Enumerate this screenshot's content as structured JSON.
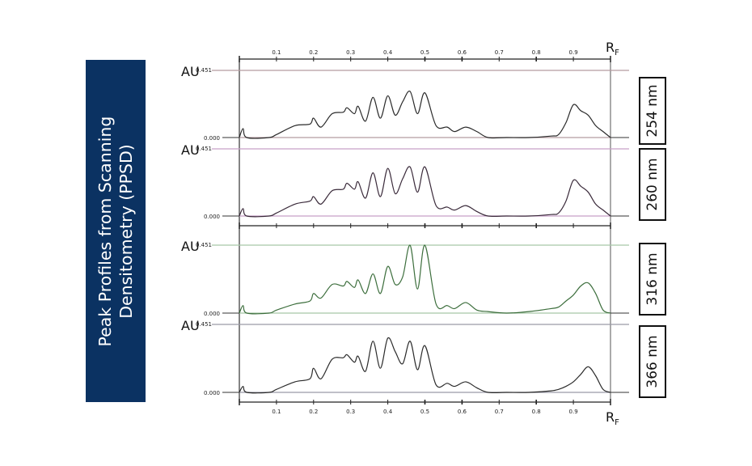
{
  "banner": {
    "title": "Peak Profiles from  Scanning\nDensitometry (PPSD)",
    "background": "#0b3262"
  },
  "axis": {
    "x_label": "R",
    "x_label_sub": "F",
    "y_label": "AU",
    "y_max_label": "0.451",
    "y_min_label": "0.000",
    "ticks": [
      "0.1",
      "0.2",
      "0.3",
      "0.4",
      "0.5",
      "0.6",
      "0.7",
      "0.8",
      "0.9"
    ]
  },
  "panels": [
    {
      "wavelength": "254 nm",
      "line_color": "#b49ca0",
      "curve_color": "#2a2a2a"
    },
    {
      "wavelength": "260 nm",
      "line_color": "#c8a0c8",
      "curve_color": "#3a2a3a"
    },
    {
      "wavelength": "316 nm",
      "line_color": "#a8c8a8",
      "curve_color": "#3c6e3c"
    },
    {
      "wavelength": "366 nm",
      "line_color": "#9a9aa8",
      "curve_color": "#2a2a2a"
    }
  ],
  "chart_data": {
    "type": "line",
    "title": "Peak Profiles from Scanning Densitometry (PPSD)",
    "xlabel": "RF",
    "ylabel": "AU",
    "xlim": [
      0,
      1.0
    ],
    "ylim": [
      0.0,
      0.451
    ],
    "grid": false,
    "x_ticks": [
      0.1,
      0.2,
      0.3,
      0.4,
      0.5,
      0.6,
      0.7,
      0.8,
      0.9
    ],
    "x": [
      0.0,
      0.01,
      0.02,
      0.08,
      0.1,
      0.15,
      0.19,
      0.2,
      0.22,
      0.25,
      0.28,
      0.29,
      0.31,
      0.32,
      0.34,
      0.36,
      0.38,
      0.4,
      0.42,
      0.44,
      0.46,
      0.48,
      0.5,
      0.53,
      0.56,
      0.58,
      0.61,
      0.64,
      0.67,
      0.72,
      0.78,
      0.84,
      0.86,
      0.88,
      0.9,
      0.92,
      0.94,
      0.96,
      0.98,
      1.0
    ],
    "series": [
      {
        "name": "254 nm",
        "values": [
          0.0,
          0.06,
          0.0,
          0.0,
          0.02,
          0.08,
          0.09,
          0.13,
          0.07,
          0.16,
          0.17,
          0.2,
          0.16,
          0.21,
          0.11,
          0.27,
          0.13,
          0.28,
          0.15,
          0.24,
          0.31,
          0.16,
          0.3,
          0.08,
          0.07,
          0.04,
          0.07,
          0.04,
          0.0,
          0.0,
          0.0,
          0.01,
          0.02,
          0.1,
          0.22,
          0.18,
          0.15,
          0.08,
          0.04,
          0.0
        ]
      },
      {
        "name": "260 nm",
        "values": [
          0.0,
          0.05,
          0.0,
          0.0,
          0.02,
          0.08,
          0.1,
          0.13,
          0.08,
          0.17,
          0.18,
          0.22,
          0.18,
          0.23,
          0.12,
          0.29,
          0.13,
          0.32,
          0.15,
          0.25,
          0.33,
          0.16,
          0.33,
          0.07,
          0.06,
          0.04,
          0.07,
          0.03,
          0.0,
          0.0,
          0.0,
          0.01,
          0.02,
          0.1,
          0.24,
          0.2,
          0.16,
          0.08,
          0.04,
          0.0
        ]
      },
      {
        "name": "316 nm",
        "values": [
          0.0,
          0.05,
          0.0,
          0.0,
          0.02,
          0.06,
          0.08,
          0.13,
          0.1,
          0.19,
          0.18,
          0.21,
          0.17,
          0.22,
          0.13,
          0.26,
          0.13,
          0.31,
          0.19,
          0.24,
          0.45,
          0.16,
          0.45,
          0.06,
          0.05,
          0.03,
          0.07,
          0.02,
          0.01,
          0.0,
          0.01,
          0.03,
          0.04,
          0.08,
          0.12,
          0.18,
          0.2,
          0.13,
          0.02,
          0.0
        ]
      },
      {
        "name": "366 nm",
        "values": [
          0.0,
          0.04,
          0.0,
          0.0,
          0.02,
          0.07,
          0.09,
          0.16,
          0.09,
          0.22,
          0.23,
          0.25,
          0.2,
          0.24,
          0.14,
          0.34,
          0.16,
          0.36,
          0.27,
          0.19,
          0.34,
          0.15,
          0.31,
          0.05,
          0.06,
          0.04,
          0.07,
          0.03,
          0.0,
          0.0,
          0.0,
          0.01,
          0.02,
          0.04,
          0.07,
          0.12,
          0.17,
          0.11,
          0.02,
          0.0
        ]
      }
    ]
  }
}
